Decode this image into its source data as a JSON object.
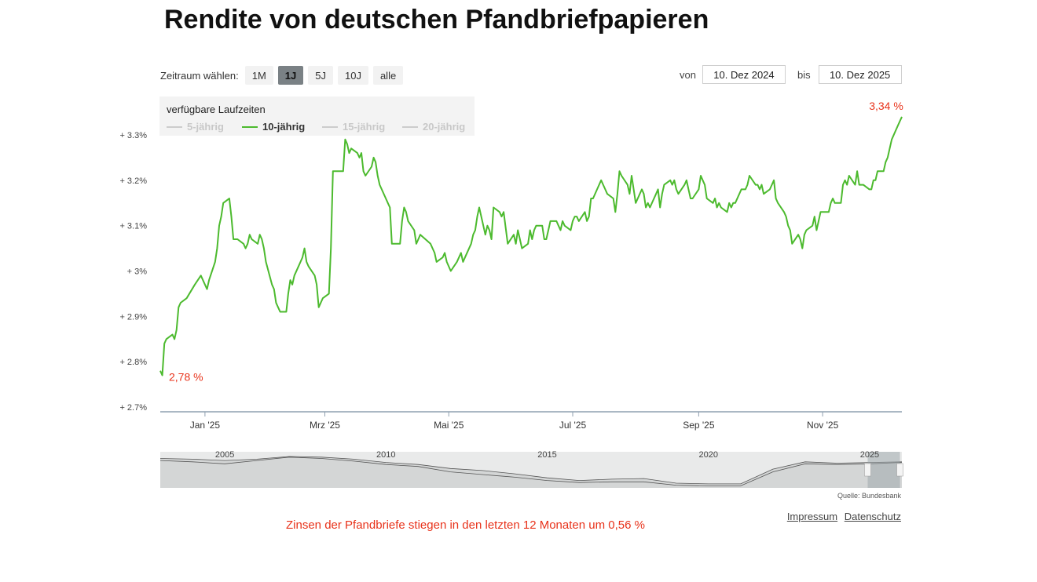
{
  "title": "Rendite von deutschen Pfandbriefpapieren",
  "range_selector": {
    "label": "Zeitraum wählen:",
    "buttons": [
      "1M",
      "1J",
      "5J",
      "10J",
      "alle"
    ],
    "active": "1J"
  },
  "date_range": {
    "from_label": "von",
    "from_value": "10. Dez 2024",
    "to_label": "bis",
    "to_value": "10. Dez 2025"
  },
  "legend": {
    "title": "verfügbare Laufzeiten",
    "items": [
      "5-jährig",
      "10-jährig",
      "15-jährig",
      "20-jährig"
    ],
    "active": "10-jährig"
  },
  "colors": {
    "series": "#4cba2e",
    "label": "#e8321a",
    "inactive": "#cccccc"
  },
  "chart_data": {
    "type": "line",
    "title": "Rendite von deutschen Pfandbriefpapieren",
    "series_name": "10-jährig",
    "unit": "%",
    "x_range": [
      "2024-12-10",
      "2025-12-10"
    ],
    "ylim": [
      2.7,
      3.3
    ],
    "y_ticks": [
      2.7,
      2.8,
      2.9,
      3.0,
      3.1,
      3.2,
      3.3
    ],
    "y_tick_labels": [
      "+ 2.7%",
      "+ 2.8%",
      "+ 2.9%",
      "+ 3%",
      "+ 3.1%",
      "+ 3.2%",
      "+ 3.3%"
    ],
    "x_ticks": [
      {
        "date": "2025-01-01",
        "label": "Jan '25"
      },
      {
        "date": "2025-03-01",
        "label": "Mrz '25"
      },
      {
        "date": "2025-05-01",
        "label": "Mai '25"
      },
      {
        "date": "2025-07-01",
        "label": "Jul '25"
      },
      {
        "date": "2025-09-01",
        "label": "Sep '25"
      },
      {
        "date": "2025-11-01",
        "label": "Nov '25"
      }
    ],
    "points": [
      [
        "2024-12-10",
        2.78
      ],
      [
        "2024-12-11",
        2.77
      ],
      [
        "2024-12-12",
        2.84
      ],
      [
        "2024-12-13",
        2.85
      ],
      [
        "2024-12-16",
        2.86
      ],
      [
        "2024-12-17",
        2.85
      ],
      [
        "2024-12-18",
        2.87
      ],
      [
        "2024-12-19",
        2.92
      ],
      [
        "2024-12-20",
        2.93
      ],
      [
        "2024-12-23",
        2.94
      ],
      [
        "2024-12-27",
        2.97
      ],
      [
        "2024-12-30",
        2.99
      ],
      [
        "2025-01-02",
        2.96
      ],
      [
        "2025-01-03",
        2.98
      ],
      [
        "2025-01-06",
        3.02
      ],
      [
        "2025-01-07",
        3.05
      ],
      [
        "2025-01-08",
        3.1
      ],
      [
        "2025-01-09",
        3.12
      ],
      [
        "2025-01-10",
        3.15
      ],
      [
        "2025-01-13",
        3.16
      ],
      [
        "2025-01-14",
        3.12
      ],
      [
        "2025-01-15",
        3.07
      ],
      [
        "2025-01-17",
        3.07
      ],
      [
        "2025-01-20",
        3.06
      ],
      [
        "2025-01-21",
        3.05
      ],
      [
        "2025-01-22",
        3.06
      ],
      [
        "2025-01-23",
        3.08
      ],
      [
        "2025-01-24",
        3.07
      ],
      [
        "2025-01-27",
        3.06
      ],
      [
        "2025-01-28",
        3.08
      ],
      [
        "2025-01-29",
        3.07
      ],
      [
        "2025-01-30",
        3.05
      ],
      [
        "2025-01-31",
        3.02
      ],
      [
        "2025-02-03",
        2.97
      ],
      [
        "2025-02-04",
        2.96
      ],
      [
        "2025-02-05",
        2.93
      ],
      [
        "2025-02-06",
        2.92
      ],
      [
        "2025-02-07",
        2.91
      ],
      [
        "2025-02-10",
        2.91
      ],
      [
        "2025-02-11",
        2.95
      ],
      [
        "2025-02-12",
        2.98
      ],
      [
        "2025-02-13",
        2.97
      ],
      [
        "2025-02-14",
        2.99
      ],
      [
        "2025-02-17",
        3.02
      ],
      [
        "2025-02-18",
        3.03
      ],
      [
        "2025-02-19",
        3.05
      ],
      [
        "2025-02-20",
        3.02
      ],
      [
        "2025-02-21",
        3.01
      ],
      [
        "2025-02-24",
        2.99
      ],
      [
        "2025-02-25",
        2.97
      ],
      [
        "2025-02-26",
        2.92
      ],
      [
        "2025-02-27",
        2.93
      ],
      [
        "2025-02-28",
        2.94
      ],
      [
        "2025-03-03",
        2.95
      ],
      [
        "2025-03-04",
        3.05
      ],
      [
        "2025-03-05",
        3.22
      ],
      [
        "2025-03-06",
        3.22
      ],
      [
        "2025-03-07",
        3.22
      ],
      [
        "2025-03-10",
        3.22
      ],
      [
        "2025-03-11",
        3.29
      ],
      [
        "2025-03-12",
        3.28
      ],
      [
        "2025-03-13",
        3.26
      ],
      [
        "2025-03-14",
        3.27
      ],
      [
        "2025-03-17",
        3.26
      ],
      [
        "2025-03-18",
        3.25
      ],
      [
        "2025-03-19",
        3.26
      ],
      [
        "2025-03-20",
        3.22
      ],
      [
        "2025-03-21",
        3.21
      ],
      [
        "2025-03-24",
        3.23
      ],
      [
        "2025-03-25",
        3.25
      ],
      [
        "2025-03-26",
        3.24
      ],
      [
        "2025-03-27",
        3.21
      ],
      [
        "2025-03-28",
        3.19
      ],
      [
        "2025-03-31",
        3.16
      ],
      [
        "2025-04-01",
        3.15
      ],
      [
        "2025-04-02",
        3.14
      ],
      [
        "2025-04-03",
        3.06
      ],
      [
        "2025-04-04",
        3.06
      ],
      [
        "2025-04-07",
        3.06
      ],
      [
        "2025-04-08",
        3.11
      ],
      [
        "2025-04-09",
        3.14
      ],
      [
        "2025-04-10",
        3.13
      ],
      [
        "2025-04-11",
        3.11
      ],
      [
        "2025-04-14",
        3.09
      ],
      [
        "2025-04-15",
        3.06
      ],
      [
        "2025-04-16",
        3.07
      ],
      [
        "2025-04-17",
        3.08
      ],
      [
        "2025-04-22",
        3.06
      ],
      [
        "2025-04-23",
        3.05
      ],
      [
        "2025-04-24",
        3.04
      ],
      [
        "2025-04-25",
        3.02
      ],
      [
        "2025-04-28",
        3.03
      ],
      [
        "2025-04-29",
        3.04
      ],
      [
        "2025-04-30",
        3.02
      ],
      [
        "2025-05-02",
        3.0
      ],
      [
        "2025-05-05",
        3.02
      ],
      [
        "2025-05-06",
        3.03
      ],
      [
        "2025-05-07",
        3.04
      ],
      [
        "2025-05-08",
        3.02
      ],
      [
        "2025-05-09",
        3.03
      ],
      [
        "2025-05-12",
        3.06
      ],
      [
        "2025-05-13",
        3.08
      ],
      [
        "2025-05-14",
        3.09
      ],
      [
        "2025-05-15",
        3.12
      ],
      [
        "2025-05-16",
        3.14
      ],
      [
        "2025-05-19",
        3.08
      ],
      [
        "2025-05-20",
        3.1
      ],
      [
        "2025-05-21",
        3.09
      ],
      [
        "2025-05-22",
        3.07
      ],
      [
        "2025-05-23",
        3.14
      ],
      [
        "2025-05-26",
        3.13
      ],
      [
        "2025-05-27",
        3.12
      ],
      [
        "2025-05-28",
        3.13
      ],
      [
        "2025-05-30",
        3.06
      ],
      [
        "2025-06-02",
        3.08
      ],
      [
        "2025-06-03",
        3.06
      ],
      [
        "2025-06-04",
        3.09
      ],
      [
        "2025-06-05",
        3.07
      ],
      [
        "2025-06-06",
        3.05
      ],
      [
        "2025-06-09",
        3.06
      ],
      [
        "2025-06-10",
        3.09
      ],
      [
        "2025-06-11",
        3.07
      ],
      [
        "2025-06-12",
        3.09
      ],
      [
        "2025-06-13",
        3.1
      ],
      [
        "2025-06-16",
        3.1
      ],
      [
        "2025-06-17",
        3.07
      ],
      [
        "2025-06-18",
        3.07
      ],
      [
        "2025-06-19",
        3.09
      ],
      [
        "2025-06-20",
        3.11
      ],
      [
        "2025-06-23",
        3.11
      ],
      [
        "2025-06-24",
        3.1
      ],
      [
        "2025-06-25",
        3.09
      ],
      [
        "2025-06-26",
        3.11
      ],
      [
        "2025-06-27",
        3.1
      ],
      [
        "2025-06-30",
        3.09
      ],
      [
        "2025-07-01",
        3.11
      ],
      [
        "2025-07-02",
        3.12
      ],
      [
        "2025-07-03",
        3.12
      ],
      [
        "2025-07-04",
        3.11
      ],
      [
        "2025-07-07",
        3.13
      ],
      [
        "2025-07-08",
        3.11
      ],
      [
        "2025-07-09",
        3.12
      ],
      [
        "2025-07-10",
        3.16
      ],
      [
        "2025-07-11",
        3.16
      ],
      [
        "2025-07-14",
        3.19
      ],
      [
        "2025-07-15",
        3.2
      ],
      [
        "2025-07-16",
        3.19
      ],
      [
        "2025-07-17",
        3.18
      ],
      [
        "2025-07-18",
        3.17
      ],
      [
        "2025-07-21",
        3.16
      ],
      [
        "2025-07-22",
        3.13
      ],
      [
        "2025-07-23",
        3.17
      ],
      [
        "2025-07-24",
        3.22
      ],
      [
        "2025-07-25",
        3.21
      ],
      [
        "2025-07-28",
        3.19
      ],
      [
        "2025-07-29",
        3.17
      ],
      [
        "2025-07-30",
        3.21
      ],
      [
        "2025-07-31",
        3.18
      ],
      [
        "2025-08-01",
        3.15
      ],
      [
        "2025-08-04",
        3.18
      ],
      [
        "2025-08-05",
        3.17
      ],
      [
        "2025-08-06",
        3.14
      ],
      [
        "2025-08-07",
        3.15
      ],
      [
        "2025-08-08",
        3.14
      ],
      [
        "2025-08-11",
        3.17
      ],
      [
        "2025-08-12",
        3.18
      ],
      [
        "2025-08-13",
        3.14
      ],
      [
        "2025-08-14",
        3.17
      ],
      [
        "2025-08-15",
        3.19
      ],
      [
        "2025-08-18",
        3.2
      ],
      [
        "2025-08-19",
        3.19
      ],
      [
        "2025-08-20",
        3.2
      ],
      [
        "2025-08-21",
        3.18
      ],
      [
        "2025-08-22",
        3.17
      ],
      [
        "2025-08-25",
        3.19
      ],
      [
        "2025-08-26",
        3.2
      ],
      [
        "2025-08-27",
        3.18
      ],
      [
        "2025-08-28",
        3.16
      ],
      [
        "2025-08-29",
        3.16
      ],
      [
        "2025-09-01",
        3.18
      ],
      [
        "2025-09-02",
        3.21
      ],
      [
        "2025-09-03",
        3.2
      ],
      [
        "2025-09-04",
        3.19
      ],
      [
        "2025-09-05",
        3.16
      ],
      [
        "2025-09-08",
        3.15
      ],
      [
        "2025-09-09",
        3.16
      ],
      [
        "2025-09-10",
        3.14
      ],
      [
        "2025-09-11",
        3.15
      ],
      [
        "2025-09-12",
        3.14
      ],
      [
        "2025-09-15",
        3.13
      ],
      [
        "2025-09-16",
        3.15
      ],
      [
        "2025-09-17",
        3.14
      ],
      [
        "2025-09-18",
        3.15
      ],
      [
        "2025-09-19",
        3.15
      ],
      [
        "2025-09-22",
        3.18
      ],
      [
        "2025-09-23",
        3.18
      ],
      [
        "2025-09-24",
        3.18
      ],
      [
        "2025-09-25",
        3.19
      ],
      [
        "2025-09-26",
        3.21
      ],
      [
        "2025-09-29",
        3.19
      ],
      [
        "2025-09-30",
        3.19
      ],
      [
        "2025-10-01",
        3.18
      ],
      [
        "2025-10-02",
        3.19
      ],
      [
        "2025-10-03",
        3.17
      ],
      [
        "2025-10-06",
        3.18
      ],
      [
        "2025-10-07",
        3.19
      ],
      [
        "2025-10-08",
        3.2
      ],
      [
        "2025-10-09",
        3.16
      ],
      [
        "2025-10-10",
        3.15
      ],
      [
        "2025-10-13",
        3.13
      ],
      [
        "2025-10-14",
        3.12
      ],
      [
        "2025-10-15",
        3.1
      ],
      [
        "2025-10-16",
        3.09
      ],
      [
        "2025-10-17",
        3.06
      ],
      [
        "2025-10-20",
        3.08
      ],
      [
        "2025-10-21",
        3.07
      ],
      [
        "2025-10-22",
        3.05
      ],
      [
        "2025-10-23",
        3.08
      ],
      [
        "2025-10-24",
        3.09
      ],
      [
        "2025-10-27",
        3.1
      ],
      [
        "2025-10-28",
        3.12
      ],
      [
        "2025-10-29",
        3.09
      ],
      [
        "2025-10-30",
        3.11
      ],
      [
        "2025-10-31",
        3.13
      ],
      [
        "2025-11-03",
        3.13
      ],
      [
        "2025-11-04",
        3.13
      ],
      [
        "2025-11-05",
        3.15
      ],
      [
        "2025-11-06",
        3.16
      ],
      [
        "2025-11-07",
        3.15
      ],
      [
        "2025-11-10",
        3.15
      ],
      [
        "2025-11-11",
        3.19
      ],
      [
        "2025-11-12",
        3.2
      ],
      [
        "2025-11-13",
        3.19
      ],
      [
        "2025-11-14",
        3.21
      ],
      [
        "2025-11-17",
        3.19
      ],
      [
        "2025-11-18",
        3.22
      ],
      [
        "2025-11-19",
        3.19
      ],
      [
        "2025-11-20",
        3.19
      ],
      [
        "2025-11-21",
        3.19
      ],
      [
        "2025-11-24",
        3.18
      ],
      [
        "2025-11-25",
        3.18
      ],
      [
        "2025-11-26",
        3.2
      ],
      [
        "2025-11-27",
        3.2
      ],
      [
        "2025-11-28",
        3.22
      ],
      [
        "2025-12-01",
        3.22
      ],
      [
        "2025-12-02",
        3.24
      ],
      [
        "2025-12-03",
        3.25
      ],
      [
        "2025-12-04",
        3.27
      ],
      [
        "2025-12-05",
        3.29
      ],
      [
        "2025-12-08",
        3.32
      ],
      [
        "2025-12-09",
        3.33
      ],
      [
        "2025-12-10",
        3.34
      ]
    ],
    "start_label": "2,78 %",
    "end_label": "3,34 %",
    "navigator": {
      "year_ticks": [
        {
          "year": 2005,
          "label": "2005"
        },
        {
          "year": 2010,
          "label": "2010"
        },
        {
          "year": 2015,
          "label": "2015"
        },
        {
          "year": 2020,
          "label": "2020"
        },
        {
          "year": 2025,
          "label": "2025"
        }
      ],
      "x_range": [
        2003.0,
        2026.0
      ],
      "selected_range": [
        2024.94,
        2025.94
      ],
      "ylim": [
        -0.6,
        4.8
      ],
      "series_a": [
        [
          2003,
          3.5
        ],
        [
          2004,
          3.3
        ],
        [
          2005,
          3.0
        ],
        [
          2006,
          3.5
        ],
        [
          2007,
          4.0
        ],
        [
          2008,
          3.8
        ],
        [
          2009,
          3.4
        ],
        [
          2010,
          2.9
        ],
        [
          2011,
          2.6
        ],
        [
          2012,
          1.8
        ],
        [
          2013,
          1.4
        ],
        [
          2014,
          1.0
        ],
        [
          2015,
          0.5
        ],
        [
          2016,
          0.2
        ],
        [
          2017,
          0.3
        ],
        [
          2018,
          0.3
        ],
        [
          2019,
          -0.2
        ],
        [
          2020,
          -0.3
        ],
        [
          2021,
          -0.3
        ],
        [
          2022,
          1.8
        ],
        [
          2023,
          3.0
        ],
        [
          2024,
          2.9
        ],
        [
          2025,
          3.0
        ],
        [
          2026,
          3.2
        ]
      ],
      "series_b": [
        [
          2003,
          3.8
        ],
        [
          2004,
          3.7
        ],
        [
          2005,
          3.5
        ],
        [
          2006,
          3.7
        ],
        [
          2007,
          4.1
        ],
        [
          2008,
          4.0
        ],
        [
          2009,
          3.7
        ],
        [
          2010,
          3.2
        ],
        [
          2011,
          2.9
        ],
        [
          2012,
          2.3
        ],
        [
          2013,
          2.0
        ],
        [
          2014,
          1.5
        ],
        [
          2015,
          0.9
        ],
        [
          2016,
          0.5
        ],
        [
          2017,
          0.7
        ],
        [
          2018,
          0.8
        ],
        [
          2019,
          0.1
        ],
        [
          2020,
          0.0
        ],
        [
          2021,
          0.0
        ],
        [
          2022,
          2.2
        ],
        [
          2023,
          3.3
        ],
        [
          2024,
          3.1
        ],
        [
          2025,
          3.2
        ],
        [
          2026,
          3.3
        ]
      ]
    }
  },
  "source": "Quelle: Bundesbank",
  "links": [
    "Impressum",
    "Datenschutz"
  ],
  "summary": "Zinsen der Pfandbriefe stiegen in den letzten 12 Monaten um 0,56 %"
}
